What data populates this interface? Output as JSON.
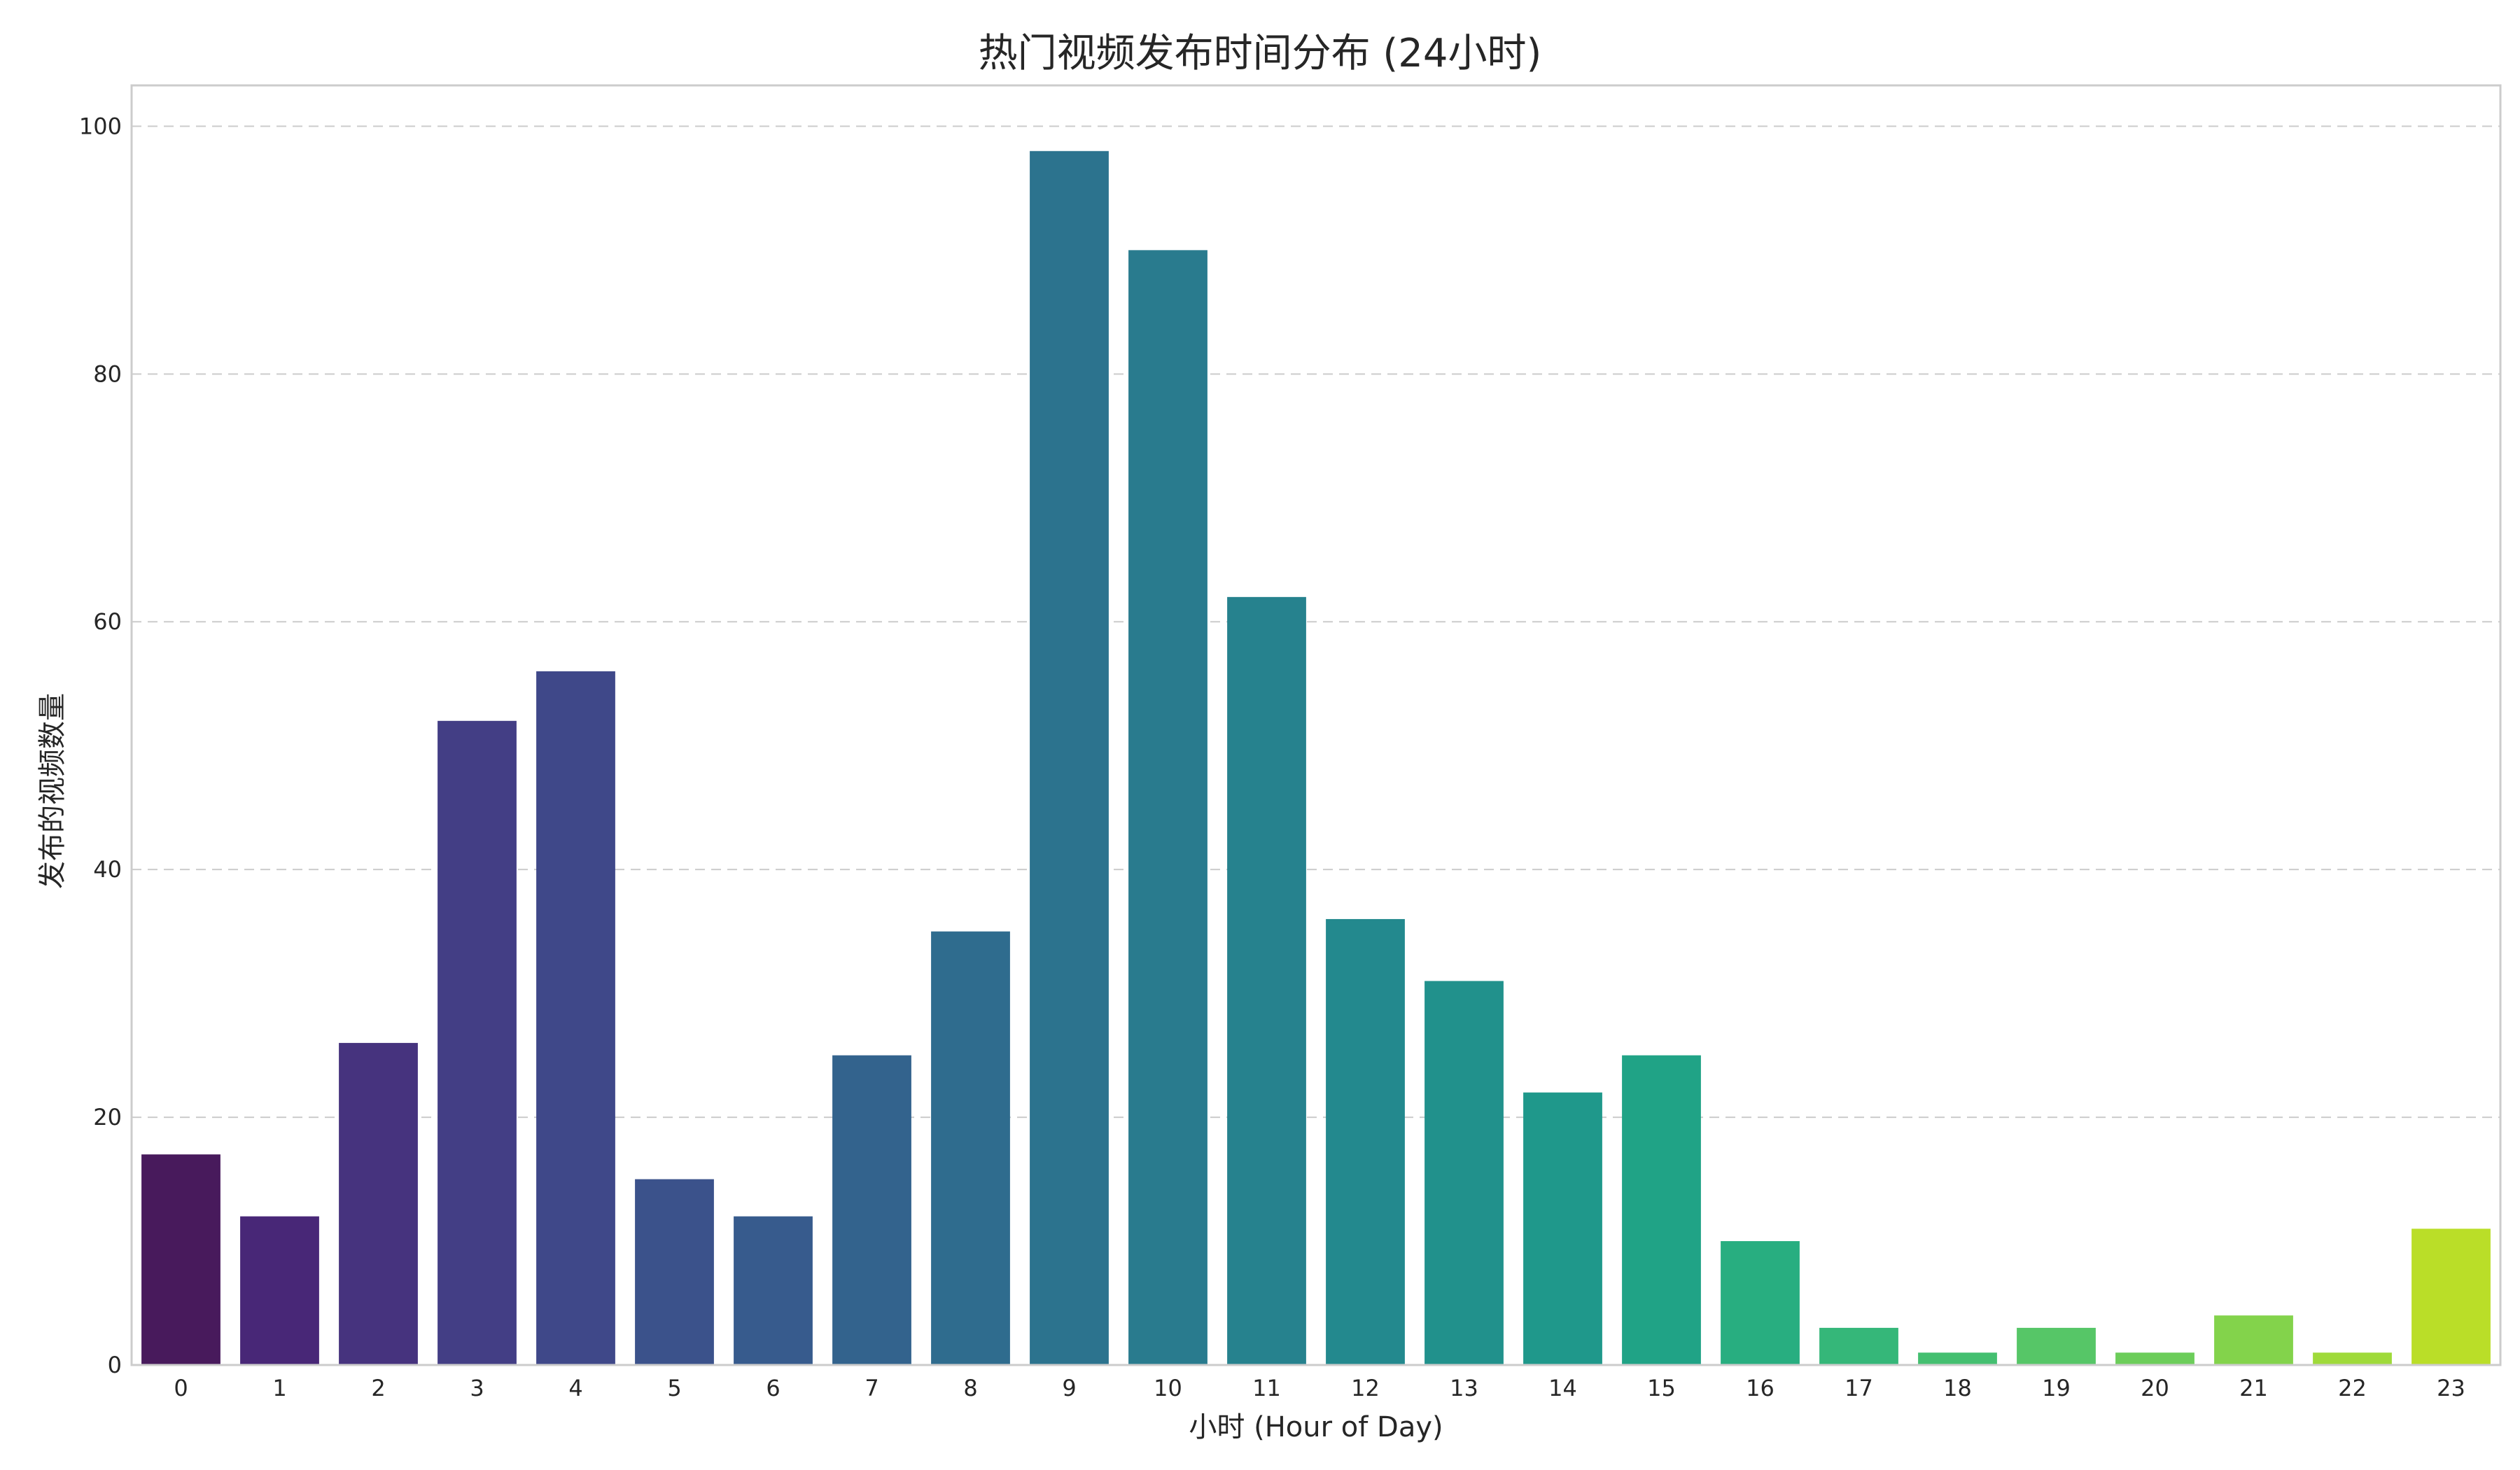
{
  "chart_data": {
    "type": "bar",
    "title": "热门视频发布时间分布 (24小时)",
    "xlabel": "小时 (Hour of Day)",
    "ylabel": "发布的视频数量",
    "categories": [
      "0",
      "1",
      "2",
      "3",
      "4",
      "5",
      "6",
      "7",
      "8",
      "9",
      "10",
      "11",
      "12",
      "13",
      "14",
      "15",
      "16",
      "17",
      "18",
      "19",
      "20",
      "21",
      "22",
      "23"
    ],
    "values": [
      17,
      12,
      26,
      52,
      56,
      15,
      12,
      25,
      35,
      98,
      90,
      62,
      36,
      31,
      22,
      25,
      10,
      3,
      1,
      3,
      1,
      4,
      1,
      11
    ],
    "ylim": [
      0,
      103.3
    ],
    "yticks": [
      0,
      20,
      40,
      60,
      80,
      100
    ],
    "grid": "horizontal dashed",
    "legend": "none",
    "palette": "viridis",
    "colors": [
      "#481a5c",
      "#482777",
      "#46337e",
      "#433e85",
      "#3f4889",
      "#3b528b",
      "#375b8d",
      "#33638d",
      "#2f6c8e",
      "#2c738e",
      "#297b8e",
      "#26828e",
      "#23898e",
      "#21918c",
      "#1f988b",
      "#20a386",
      "#28ae80",
      "#35b779",
      "#44bf70",
      "#56c667",
      "#6ccd5a",
      "#83d34b",
      "#9fda3a",
      "#bade28"
    ]
  }
}
